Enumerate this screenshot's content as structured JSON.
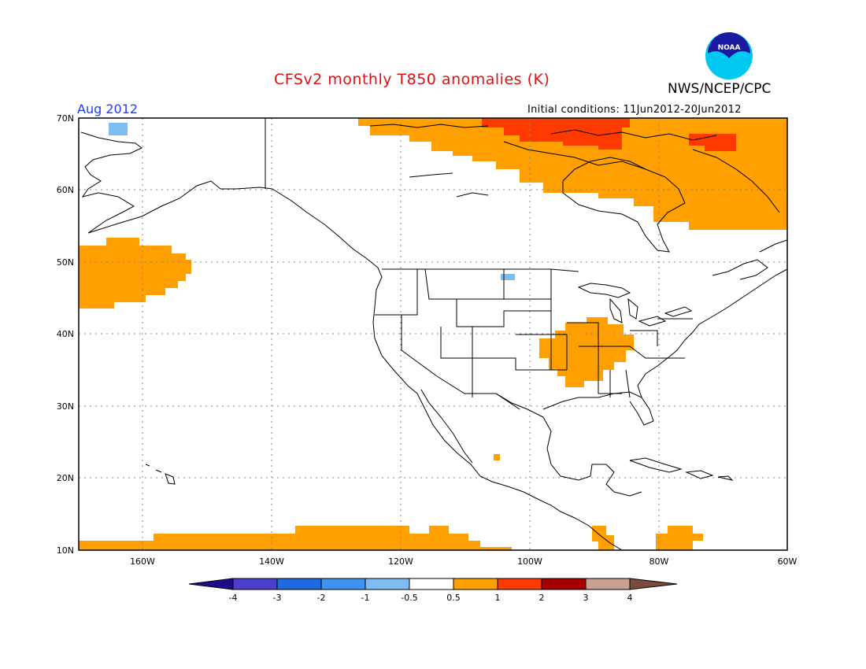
{
  "header": {
    "title": "CFSv2 monthly T850 anomalies (K)",
    "agency": "NWS/NCEP/CPC",
    "period": "Aug 2012",
    "initial_conditions": "Initial conditions: 11Jun2012-20Jun2012",
    "logo_text": "NOAA"
  },
  "axes": {
    "lat_labels": [
      "70N",
      "60N",
      "50N",
      "40N",
      "30N",
      "20N",
      "10N"
    ],
    "lon_labels": [
      "160W",
      "140W",
      "120W",
      "100W",
      "80W",
      "60W"
    ]
  },
  "colorbar": {
    "labels": [
      "-4",
      "-3",
      "-2",
      "-1",
      "-0.5",
      "0.5",
      "1",
      "2",
      "3",
      "4"
    ],
    "colors": [
      "#1a0c8c",
      "#4b3fd0",
      "#1f6ae0",
      "#3d93f2",
      "#7fbcf2",
      "#ffffff",
      "#ff9f00",
      "#ff3a00",
      "#a80000",
      "#c8a090",
      "#7a4a3a"
    ]
  },
  "colors": {
    "orange": "#ff9f00",
    "red": "#ff3a00",
    "light_blue": "#7fbcf2"
  }
}
